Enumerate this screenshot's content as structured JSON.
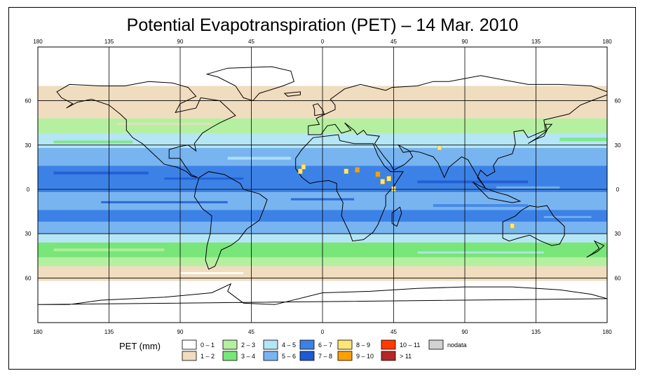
{
  "title": "Potential Evapotranspiration (PET) – 14 Mar. 2010",
  "axes": {
    "lon_ticks": [
      "180",
      "135",
      "90",
      "45",
      "0",
      "45",
      "90",
      "135",
      "180"
    ],
    "lat_ticks": [
      "60",
      "30",
      "0",
      "30",
      "60"
    ]
  },
  "legend": {
    "label": "PET (mm)",
    "items": [
      {
        "label": "0 – 1",
        "color": "#ffffff"
      },
      {
        "label": "1 – 2",
        "color": "#f0dcbe"
      },
      {
        "label": "2 – 3",
        "color": "#b4f0a0"
      },
      {
        "label": "3 – 4",
        "color": "#78e678"
      },
      {
        "label": "4 – 5",
        "color": "#b4e6f5"
      },
      {
        "label": "5 – 6",
        "color": "#78b4f0"
      },
      {
        "label": "6 – 7",
        "color": "#3c82e6"
      },
      {
        "label": "7 – 8",
        "color": "#1e5ad2"
      },
      {
        "label": "8 – 9",
        "color": "#ffe678"
      },
      {
        "label": "9 – 10",
        "color": "#ffa000"
      },
      {
        "label": "10 – 11",
        "color": "#ff3c00"
      },
      {
        "label": "> 11",
        "color": "#b42828"
      },
      {
        "label": "nodata",
        "color": "#d2d2d2"
      }
    ]
  }
}
